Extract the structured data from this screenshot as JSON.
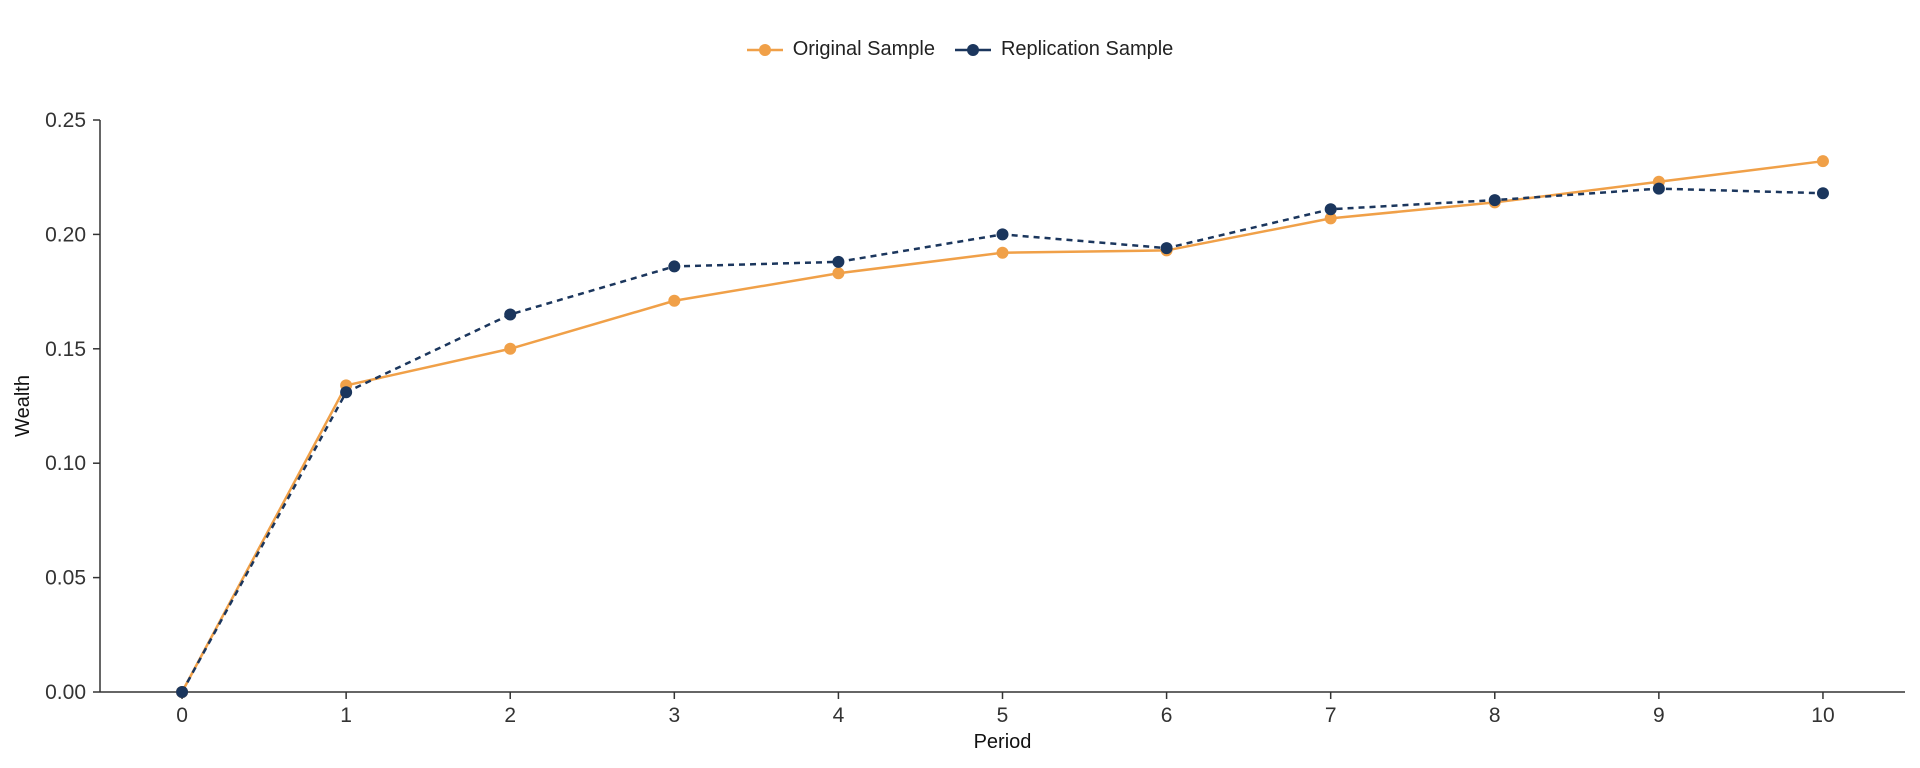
{
  "chart_data": {
    "type": "line",
    "title": "",
    "xlabel": "Period",
    "ylabel": "Wealth",
    "x": [
      0,
      1,
      2,
      3,
      4,
      5,
      6,
      7,
      8,
      9,
      10
    ],
    "xlim": [
      -0.5,
      10.5
    ],
    "ylim": [
      0,
      0.25
    ],
    "xticks": [
      "0",
      "1",
      "2",
      "3",
      "4",
      "5",
      "6",
      "7",
      "8",
      "9",
      "10"
    ],
    "yticks": [
      "0.00",
      "0.05",
      "0.10",
      "0.15",
      "0.20",
      "0.25"
    ],
    "ytick_values": [
      0,
      0.05,
      0.1,
      0.15,
      0.2,
      0.25
    ],
    "grid": false,
    "legend_position": "top-center",
    "series": [
      {
        "name": "Original Sample",
        "color": "#F0A048",
        "line_style": "solid",
        "values": [
          0.0,
          0.134,
          0.15,
          0.171,
          0.183,
          0.192,
          0.193,
          0.207,
          0.214,
          0.223,
          0.232
        ]
      },
      {
        "name": "Replication Sample",
        "color": "#1B365D",
        "line_style": "dashed",
        "values": [
          0.0,
          0.131,
          0.165,
          0.186,
          0.188,
          0.2,
          0.194,
          0.211,
          0.215,
          0.22,
          0.218
        ]
      }
    ]
  }
}
